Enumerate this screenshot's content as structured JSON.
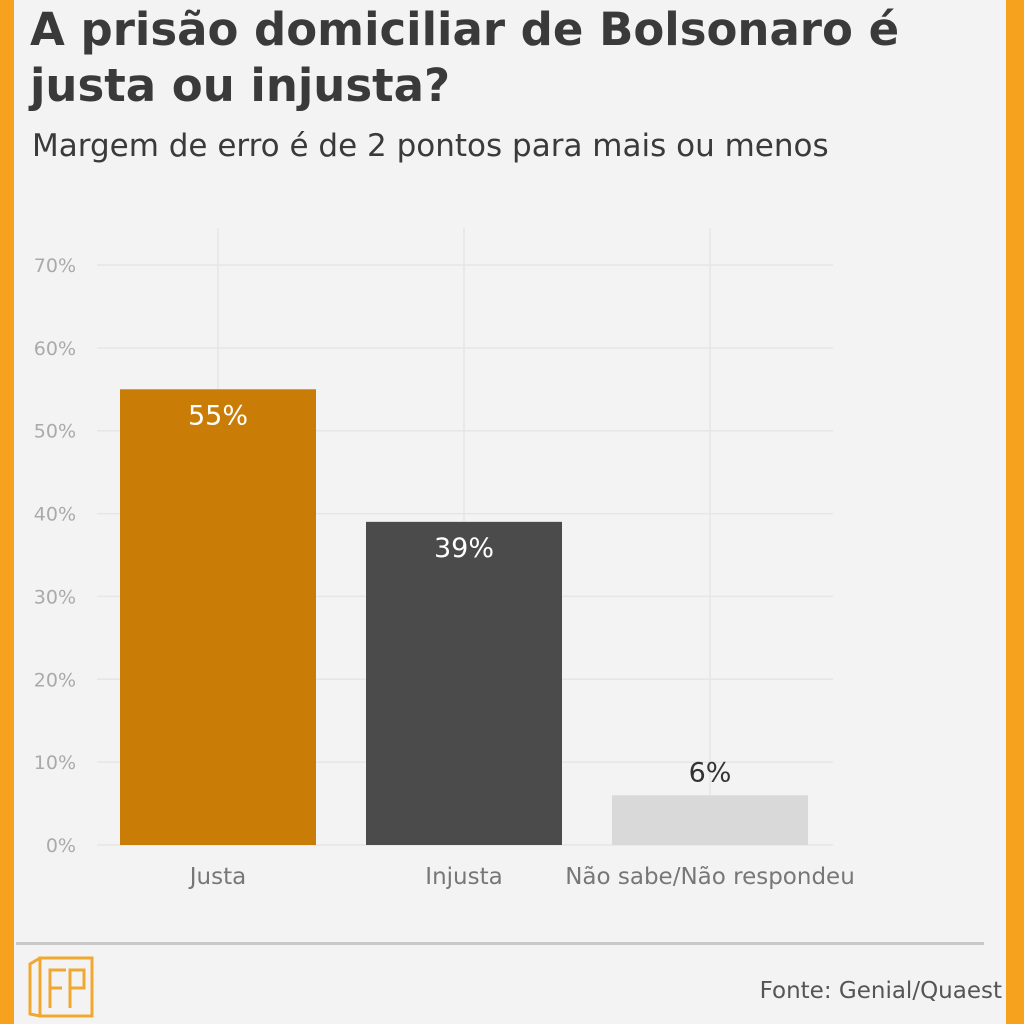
{
  "header": {
    "title": "A prisão domiciliar de Bolsonaro é justa ou injusta?",
    "subtitle": "Margem de erro é de 2 pontos para mais ou menos"
  },
  "chart_data": {
    "type": "bar",
    "categories": [
      "Justa",
      "Injusta",
      "Não sabe/Não respondeu"
    ],
    "values": [
      55,
      39,
      6
    ],
    "data_labels": [
      "55%",
      "39%",
      "6%"
    ],
    "colors": [
      "#c97c06",
      "#4b4b4b",
      "#d9d9d9"
    ],
    "ylim": [
      0,
      70
    ],
    "yticks": [
      0,
      10,
      20,
      30,
      40,
      50,
      60,
      70
    ],
    "ytick_suffix": "%",
    "grid": true,
    "title": "A prisão domiciliar de Bolsonaro é justa ou injusta?",
    "subtitle": "Margem de erro é de 2 pontos para mais ou menos"
  },
  "footer": {
    "source": "Fonte: Genial/Quaest",
    "logo_icon": "gp-logo-icon",
    "divider_color": "#c9c9c9"
  }
}
